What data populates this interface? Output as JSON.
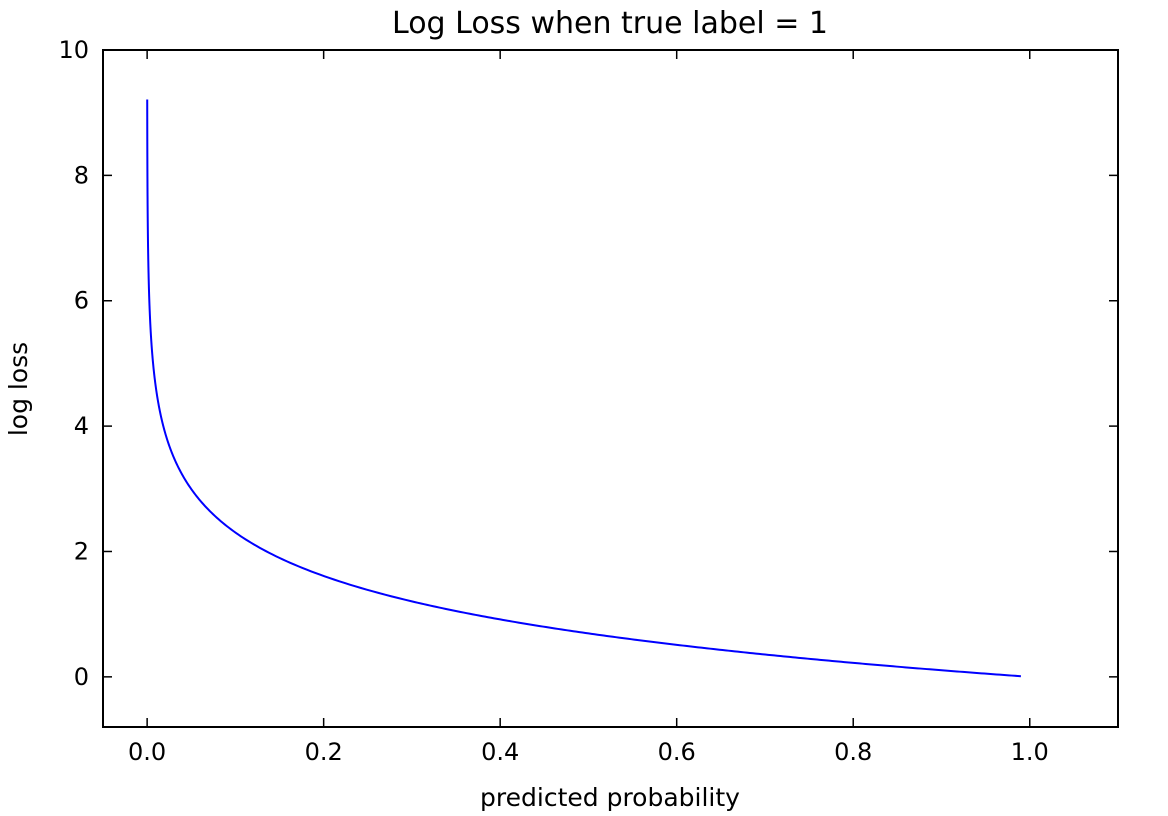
{
  "chart_data": {
    "type": "line",
    "title": "Log Loss when true label = 1",
    "xlabel": "predicted probability",
    "ylabel": "log loss",
    "xlim": [
      -0.05,
      1.1
    ],
    "ylim": [
      -0.8,
      10
    ],
    "xticks": [
      0.0,
      0.2,
      0.4,
      0.6,
      0.8,
      1.0
    ],
    "xtick_labels": [
      "0.0",
      "0.2",
      "0.4",
      "0.6",
      "0.8",
      "1.0"
    ],
    "yticks": [
      0,
      2,
      4,
      6,
      8,
      10
    ],
    "ytick_labels": [
      "0",
      "2",
      "4",
      "6",
      "8",
      "10"
    ],
    "grid": false,
    "series": [
      {
        "function": "-ln(p)",
        "x_range": [
          0.0001,
          0.99
        ],
        "color": "#0000ff"
      }
    ]
  }
}
